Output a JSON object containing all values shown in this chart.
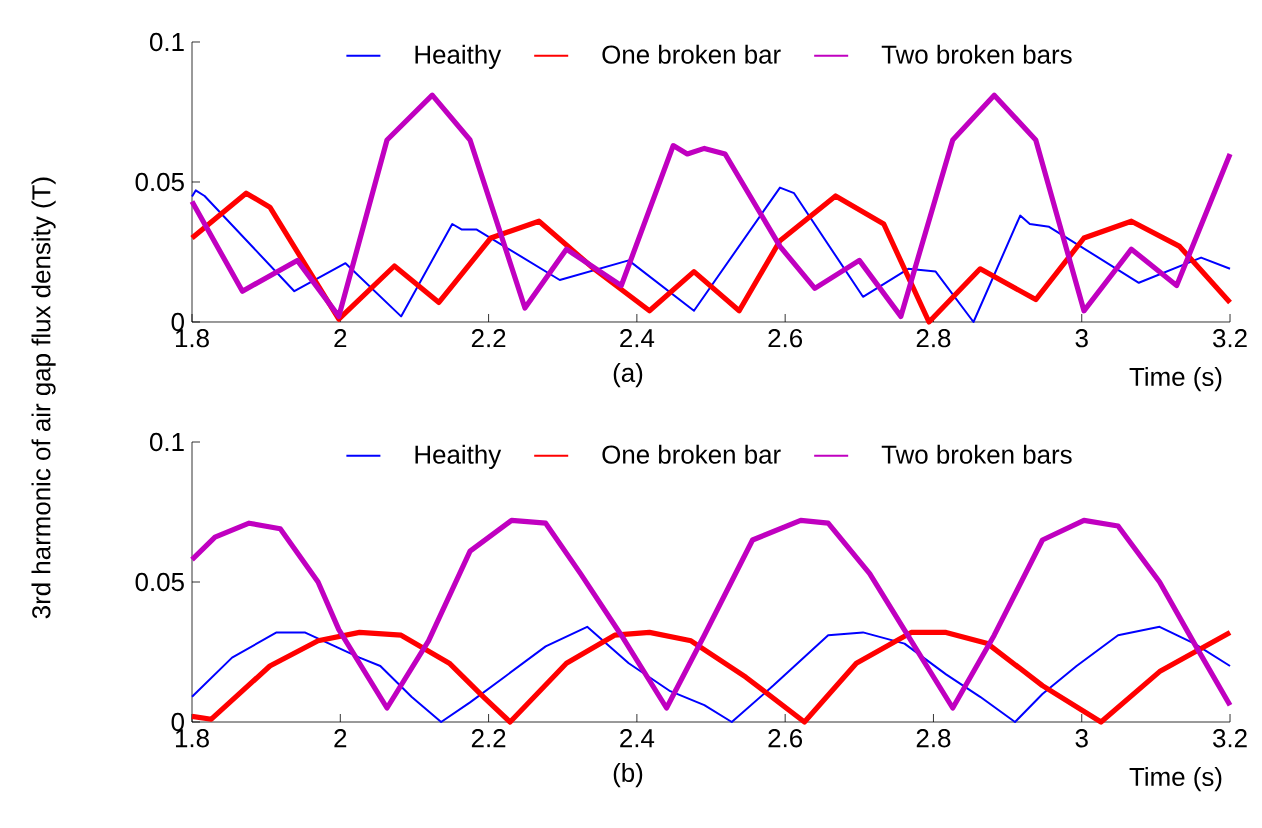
{
  "chart_data": [
    {
      "type": "line",
      "ylabel": "3rd harmonic of air gap flux density (T)",
      "xlabel": "Time (s)",
      "annotations": [
        "(a)"
      ],
      "xlim": [
        1.8,
        3.2
      ],
      "ylim": [
        0,
        0.1
      ],
      "xticks": [
        1.8,
        2,
        2.2,
        2.4,
        2.6,
        2.8,
        3,
        3.2
      ],
      "yticks": [
        0,
        0.05,
        0.1
      ],
      "grid": false,
      "legend": "top",
      "marker": "none",
      "line_style": "solid",
      "series": [
        {
          "name": "Heaithy",
          "color": "#0000ff",
          "x": [
            1.8,
            1.805,
            1.817,
            1.938,
            2.007,
            2.082,
            2.151,
            2.164,
            2.184,
            2.296,
            2.389,
            2.477,
            2.593,
            2.612,
            2.705,
            2.766,
            2.803,
            2.854,
            2.917,
            2.93,
            2.956,
            3.077,
            3.161,
            3.2
          ],
          "values": [
            0.0448,
            0.047,
            0.045,
            0.011,
            0.021,
            0.002,
            0.035,
            0.033,
            0.033,
            0.015,
            0.022,
            0.004,
            0.048,
            0.046,
            0.009,
            0.019,
            0.018,
            0.0,
            0.038,
            0.035,
            0.034,
            0.014,
            0.023,
            0.019
          ]
        },
        {
          "name": "One broken bar",
          "color": "#ff0000",
          "x": [
            1.8,
            1.873,
            1.905,
            1.998,
            2.073,
            2.133,
            2.203,
            2.268,
            2.342,
            2.417,
            2.477,
            2.538,
            2.593,
            2.668,
            2.733,
            2.794,
            2.863,
            2.938,
            3.003,
            3.067,
            3.132,
            3.2
          ],
          "values": [
            0.03,
            0.046,
            0.041,
            0.001,
            0.02,
            0.007,
            0.03,
            0.036,
            0.019,
            0.004,
            0.018,
            0.004,
            0.029,
            0.045,
            0.035,
            0.0,
            0.019,
            0.008,
            0.03,
            0.036,
            0.027,
            0.007
          ]
        },
        {
          "name": "Two broken bars",
          "color": "#c000c0",
          "x": [
            1.8,
            1.868,
            1.942,
            1.998,
            2.063,
            2.124,
            2.175,
            2.249,
            2.305,
            2.379,
            2.449,
            2.468,
            2.491,
            2.519,
            2.593,
            2.64,
            2.7,
            2.756,
            2.826,
            2.882,
            2.938,
            3.003,
            3.067,
            3.128,
            3.2
          ],
          "values": [
            0.043,
            0.011,
            0.022,
            0.002,
            0.065,
            0.081,
            0.065,
            0.005,
            0.026,
            0.013,
            0.063,
            0.06,
            0.062,
            0.06,
            0.027,
            0.012,
            0.022,
            0.002,
            0.065,
            0.081,
            0.065,
            0.004,
            0.026,
            0.013,
            0.06
          ]
        }
      ]
    },
    {
      "type": "line",
      "xlabel": "Time (s)",
      "annotations": [
        "(b)"
      ],
      "xlim": [
        1.8,
        3.2
      ],
      "ylim": [
        0,
        0.1
      ],
      "xticks": [
        1.8,
        2,
        2.2,
        2.4,
        2.6,
        2.8,
        3,
        3.2
      ],
      "yticks": [
        0,
        0.05,
        0.1
      ],
      "grid": false,
      "legend": "top",
      "marker": "none",
      "line_style": "solid",
      "series": [
        {
          "name": "Heaithy",
          "color": "#0000ff",
          "x": [
            1.8,
            1.854,
            1.914,
            1.952,
            2.026,
            2.054,
            2.096,
            2.136,
            2.175,
            2.221,
            2.277,
            2.333,
            2.389,
            2.445,
            2.491,
            2.528,
            2.584,
            2.658,
            2.705,
            2.761,
            2.817,
            2.863,
            2.91,
            2.947,
            2.993,
            3.049,
            3.105,
            3.152,
            3.2
          ],
          "values": [
            0.009,
            0.023,
            0.032,
            0.032,
            0.023,
            0.02,
            0.009,
            0.0,
            0.007,
            0.016,
            0.027,
            0.034,
            0.021,
            0.011,
            0.006,
            0.0,
            0.013,
            0.031,
            0.032,
            0.028,
            0.017,
            0.009,
            0.0,
            0.01,
            0.02,
            0.031,
            0.034,
            0.028,
            0.02
          ]
        },
        {
          "name": "One broken bar",
          "color": "#ff0000",
          "x": [
            1.8,
            1.826,
            1.905,
            1.97,
            2.026,
            2.082,
            2.147,
            2.193,
            2.229,
            2.305,
            2.37,
            2.417,
            2.473,
            2.547,
            2.626,
            2.696,
            2.77,
            2.817,
            2.873,
            2.947,
            3.026,
            3.105,
            3.2
          ],
          "values": [
            0.002,
            0.001,
            0.02,
            0.029,
            0.032,
            0.031,
            0.021,
            0.009,
            0.0,
            0.021,
            0.031,
            0.032,
            0.029,
            0.016,
            0.0,
            0.021,
            0.032,
            0.032,
            0.028,
            0.013,
            0.0,
            0.018,
            0.032
          ]
        },
        {
          "name": "Two broken bars",
          "color": "#c000c0",
          "x": [
            1.8,
            1.831,
            1.877,
            1.919,
            1.97,
            1.998,
            2.063,
            2.119,
            2.175,
            2.231,
            2.277,
            2.324,
            2.379,
            2.44,
            2.491,
            2.556,
            2.621,
            2.658,
            2.714,
            2.77,
            2.826,
            2.882,
            2.947,
            3.003,
            3.049,
            3.105,
            3.152,
            3.2
          ],
          "values": [
            0.058,
            0.066,
            0.071,
            0.069,
            0.05,
            0.033,
            0.005,
            0.029,
            0.061,
            0.072,
            0.071,
            0.053,
            0.031,
            0.005,
            0.031,
            0.065,
            0.072,
            0.071,
            0.053,
            0.029,
            0.005,
            0.031,
            0.065,
            0.072,
            0.07,
            0.05,
            0.028,
            0.006
          ]
        }
      ]
    }
  ]
}
